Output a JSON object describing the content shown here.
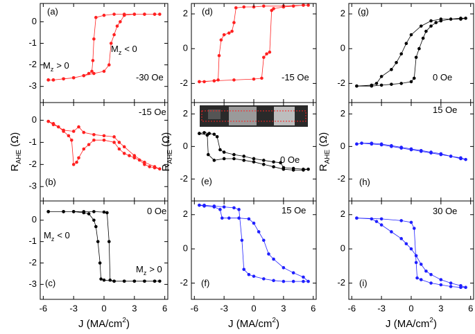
{
  "chart_data": [
    {
      "type": "line",
      "color": "#ff2020",
      "xlim": [
        -6.3,
        6.3
      ],
      "ylim": [
        -3.75,
        0.85
      ],
      "xticks": [
        -6,
        -3,
        0,
        3,
        6
      ],
      "yticks": [
        -3,
        -2,
        -1,
        0
      ],
      "annotations": [
        {
          "text": "(a)"
        },
        {
          "text": "M",
          "sub": "z",
          "rest": "< 0"
        },
        {
          "text": "M",
          "sub": "z",
          "rest": "> 0"
        },
        {
          "text": "-30 Oe"
        }
      ],
      "x": [
        -5.5,
        -5,
        -4,
        -3,
        -2,
        -1,
        0,
        0.5,
        0.7,
        1,
        1.3,
        1.6,
        2,
        3,
        4,
        5,
        5.5,
        5,
        4,
        3,
        2,
        1,
        0,
        -0.8,
        -1,
        -1.1,
        -1.2,
        -1.5,
        -2,
        -3,
        -4,
        -5,
        -5.5
      ],
      "values": [
        -2.7,
        -2.7,
        -2.65,
        -2.6,
        -2.5,
        -2.4,
        -2.3,
        -2.0,
        -1.0,
        -0.6,
        -0.2,
        0.0,
        0.3,
        0.35,
        0.35,
        0.35,
        0.35,
        0.35,
        0.35,
        0.35,
        0.35,
        0.35,
        0.3,
        0.2,
        -0.8,
        -1.8,
        -2.3,
        -2.4,
        -2.5,
        -2.6,
        -2.65,
        -2.7,
        -2.7
      ]
    },
    {
      "type": "line",
      "color": "#ff2020",
      "xlim": [
        -6.3,
        6.3
      ],
      "ylim": [
        -3.65,
        0.8
      ],
      "xticks": [
        -6,
        -3,
        0,
        3,
        6
      ],
      "yticks": [
        -3,
        -2,
        -1,
        0
      ],
      "ylabel_symbol": "R",
      "ylabel_subscript": "AHE",
      "ylabel_unit": "(Ω)",
      "annotations": [
        {
          "text": "-15 Oe"
        },
        {
          "text": "(b)"
        }
      ],
      "x": [
        -5.5,
        -5,
        -4.5,
        -4,
        -3.5,
        -3.2,
        -3,
        -2.7,
        -2.5,
        -2,
        -1.5,
        -1,
        0,
        1,
        1.5,
        2,
        2.5,
        3,
        3.5,
        4,
        4.5,
        5,
        5.5,
        5,
        4,
        3,
        2,
        1.5,
        1,
        0,
        -1,
        -2,
        -2.5,
        -3,
        -4,
        -5,
        -5.5
      ],
      "values": [
        -0.05,
        -0.2,
        -0.3,
        -0.5,
        -0.7,
        -0.9,
        -2.0,
        -1.9,
        -1.7,
        -1.3,
        -1.1,
        -0.9,
        -0.9,
        -1.0,
        -1.3,
        -1.5,
        -1.6,
        -1.7,
        -1.8,
        -2.0,
        -2.1,
        -2.15,
        -2.2,
        -2.1,
        -1.9,
        -1.6,
        -1.2,
        -1.0,
        -0.75,
        -0.7,
        -0.65,
        -0.55,
        -0.3,
        -0.5,
        -0.45,
        -0.15,
        -0.05
      ]
    },
    {
      "type": "line",
      "color": "#000000",
      "xlim": [
        -6.3,
        6.3
      ],
      "ylim": [
        -3.7,
        0.9
      ],
      "xticks": [
        -6,
        -3,
        0,
        3,
        6
      ],
      "yticks": [
        -3,
        -2,
        -1,
        0
      ],
      "xlabel": "J (MA/cm",
      "xlabel_sup": "2",
      "xlabel_end": ")",
      "annotations": [
        {
          "text": "0 Oe"
        },
        {
          "text": "M",
          "sub": "z",
          "rest": "< 0"
        },
        {
          "text": "M",
          "sub": "z",
          "rest": "> 0"
        },
        {
          "text": "(c)"
        }
      ],
      "x": [
        -5.5,
        -4,
        -3,
        -2,
        -1,
        0,
        0.3,
        0.5,
        0.6,
        1,
        2,
        3,
        4,
        5,
        5.5,
        5,
        4,
        3,
        2,
        1,
        0,
        -0.3,
        -0.4,
        -0.6,
        -0.8,
        -1,
        -1.5,
        -2,
        -3,
        -4,
        -5.5
      ],
      "values": [
        0.4,
        0.4,
        0.4,
        0.4,
        0.4,
        0.38,
        0.35,
        -1.0,
        -2.8,
        -2.85,
        -2.85,
        -2.85,
        -2.85,
        -2.85,
        -2.85,
        -2.85,
        -2.85,
        -2.85,
        -2.85,
        -2.85,
        -2.8,
        -2.75,
        -2.0,
        -1.0,
        -0.3,
        0.0,
        0.3,
        0.35,
        0.4,
        0.4,
        0.4
      ]
    },
    {
      "type": "line",
      "color": "#ff2020",
      "xlim": [
        -6.3,
        6.3
      ],
      "ylim": [
        -3.1,
        2.6
      ],
      "xticks": [
        -6,
        -3,
        0,
        3,
        6
      ],
      "yticks": [
        -2,
        0,
        2
      ],
      "annotations": [
        {
          "text": "(d)"
        },
        {
          "text": "-15 Oe"
        }
      ],
      "x": [
        -5.5,
        -4,
        -2,
        0,
        0.8,
        1.0,
        1.3,
        1.6,
        1.8,
        2,
        3,
        4,
        5,
        5.5,
        5,
        3,
        1,
        0,
        -1,
        -1.8,
        -2,
        -2.2,
        -2.5,
        -3,
        -3.3,
        -3.5,
        -3.6,
        -4,
        -5,
        -5.5
      ],
      "values": [
        -1.9,
        -1.85,
        -1.8,
        -1.75,
        -1.7,
        -0.5,
        -0.3,
        -0.2,
        2.2,
        2.3,
        2.4,
        2.45,
        2.5,
        2.5,
        2.5,
        2.45,
        2.45,
        2.4,
        2.4,
        2.35,
        1.5,
        1.0,
        0.9,
        0.8,
        0.5,
        -0.4,
        -1.8,
        -1.85,
        -1.9,
        -1.9
      ]
    },
    {
      "type": "line",
      "color": "#000000",
      "xlim": [
        -6.3,
        6.3
      ],
      "ylim": [
        -3.35,
        2.7
      ],
      "xticks": [
        -6,
        -3,
        0,
        3,
        6
      ],
      "yticks": [
        -2,
        0,
        2
      ],
      "ylabel_symbol": "R",
      "ylabel_subscript": "AHE",
      "ylabel_unit": "(Ω)",
      "annotations": [
        {
          "text": "0 Oe"
        },
        {
          "text": "(e)"
        }
      ],
      "x": [
        -5.5,
        -5,
        -4.5,
        -4,
        -3.7,
        -3.4,
        -3,
        -2,
        -1,
        0,
        1,
        2,
        2.7,
        3,
        4,
        5,
        5.5,
        5,
        4,
        3,
        2,
        1,
        0,
        -1,
        -2,
        -3,
        -4,
        -4.6,
        -4.7,
        -5.5
      ],
      "values": [
        0.8,
        0.85,
        0.8,
        0.75,
        0.6,
        -0.2,
        -0.35,
        -0.5,
        -0.6,
        -0.75,
        -0.85,
        -0.95,
        -1.0,
        -1.3,
        -1.35,
        -1.4,
        -1.4,
        -1.45,
        -1.45,
        -1.4,
        -1.25,
        -1.1,
        -0.95,
        -0.85,
        -0.75,
        -0.75,
        -0.85,
        -0.5,
        0.7,
        0.8
      ]
    },
    {
      "type": "line",
      "color": "#1f1fff",
      "xlim": [
        -6.3,
        6.3
      ],
      "ylim": [
        -2.95,
        2.8
      ],
      "xticks": [
        -6,
        -3,
        0,
        3,
        6
      ],
      "yticks": [
        -2,
        0,
        2
      ],
      "xlabel": "J (MA/cm",
      "xlabel_sup": "2",
      "xlabel_end": ")",
      "annotations": [
        {
          "text": "15 Oe"
        },
        {
          "text": "(f)"
        }
      ],
      "x": [
        -5.5,
        -5,
        -4,
        -3,
        -2,
        -1.5,
        -1.2,
        -1.0,
        -0.5,
        0,
        1,
        2,
        3,
        4,
        5,
        5.5,
        5,
        4,
        3,
        2,
        1.5,
        1,
        0.5,
        0,
        -0.5,
        -1.5,
        -2.5,
        -3.2,
        -3.4,
        -4,
        -5,
        -5.5
      ],
      "values": [
        2.55,
        2.55,
        2.5,
        2.45,
        2.4,
        2.3,
        0.5,
        -1.2,
        -1.5,
        -1.6,
        -1.75,
        -1.85,
        -1.9,
        -1.9,
        -1.9,
        -1.9,
        -1.65,
        -1.4,
        -1.1,
        -0.6,
        -0.3,
        0.5,
        1.0,
        1.5,
        1.75,
        1.8,
        1.8,
        1.8,
        2.3,
        2.45,
        2.5,
        2.55
      ]
    },
    {
      "type": "line",
      "color": "#000000",
      "xlim": [
        -6.3,
        6.3
      ],
      "ylim": [
        -3.1,
        2.6
      ],
      "xticks": [
        -6,
        -3,
        0,
        3,
        6
      ],
      "yticks": [
        -2,
        0,
        2
      ],
      "annotations": [
        {
          "text": "(g)"
        },
        {
          "text": "0 Oe"
        }
      ],
      "x": [
        -5.5,
        -4,
        -3,
        -2,
        -1,
        0,
        0.3,
        0.5,
        0.8,
        1.2,
        1.5,
        2,
        2.5,
        3,
        4,
        5,
        5.5,
        5,
        3,
        2,
        1,
        0,
        -0.5,
        -1,
        -1.5,
        -2,
        -3,
        -3.5,
        -4,
        -5.5
      ],
      "values": [
        -2.15,
        -2.15,
        -2.1,
        -2.05,
        -2.0,
        -1.9,
        -1.7,
        -0.5,
        0.0,
        0.6,
        1.0,
        1.3,
        1.5,
        1.6,
        1.7,
        1.75,
        1.75,
        1.7,
        1.7,
        1.6,
        1.3,
        0.8,
        0.3,
        -0.3,
        -0.8,
        -1.2,
        -1.6,
        -2.0,
        -2.1,
        -2.15
      ]
    },
    {
      "type": "line",
      "color": "#1f1fff",
      "xlim": [
        -6.3,
        6.3
      ],
      "ylim": [
        -3.35,
        2.7
      ],
      "xticks": [
        -6,
        -3,
        0,
        3,
        6
      ],
      "yticks": [
        -2,
        0,
        2
      ],
      "ylabel_symbol": "R",
      "ylabel_subscript": "AHE",
      "ylabel_unit": "(Ω)",
      "annotations": [
        {
          "text": "15 Oe"
        },
        {
          "text": "(h)"
        }
      ],
      "x": [
        -5.5,
        -5,
        -4,
        -3,
        -2,
        -1,
        0,
        1,
        2,
        3,
        4,
        5,
        5.5,
        5,
        4,
        3,
        2,
        1,
        0,
        -1,
        -2,
        -3,
        -4,
        -5,
        -5.5
      ],
      "values": [
        0.15,
        0.2,
        0.15,
        0.1,
        0.0,
        -0.1,
        -0.2,
        -0.3,
        -0.4,
        -0.5,
        -0.6,
        -0.7,
        -0.8,
        -0.75,
        -0.6,
        -0.45,
        -0.35,
        -0.25,
        -0.15,
        -0.05,
        0.05,
        0.15,
        0.2,
        0.2,
        0.15
      ]
    },
    {
      "type": "line",
      "color": "#1f1fff",
      "xlim": [
        -6.3,
        6.3
      ],
      "ylim": [
        -2.95,
        2.8
      ],
      "xticks": [
        -6,
        -3,
        0,
        3,
        6
      ],
      "yticks": [
        -2,
        0,
        2
      ],
      "xlabel": "J (MA/cm",
      "xlabel_sup": "2",
      "xlabel_end": ")",
      "annotations": [
        {
          "text": "30 Oe"
        },
        {
          "text": "(i)"
        }
      ],
      "x": [
        -5.5,
        -3,
        -1,
        0,
        0.3,
        0.5,
        0.6,
        1,
        2,
        3,
        4,
        5,
        5.5,
        5,
        4,
        3,
        2,
        1.5,
        1,
        0.5,
        0,
        -0.5,
        -1,
        -2,
        -3,
        -3.5,
        -4,
        -5.5
      ],
      "values": [
        1.8,
        1.75,
        1.65,
        1.55,
        1.2,
        -0.8,
        -1.7,
        -1.8,
        -2.0,
        -2.1,
        -2.2,
        -2.25,
        -2.25,
        -2.15,
        -2.0,
        -1.8,
        -1.5,
        -1.3,
        -0.9,
        -0.4,
        0.0,
        0.3,
        0.6,
        1.0,
        1.4,
        1.6,
        1.75,
        1.8
      ]
    }
  ]
}
